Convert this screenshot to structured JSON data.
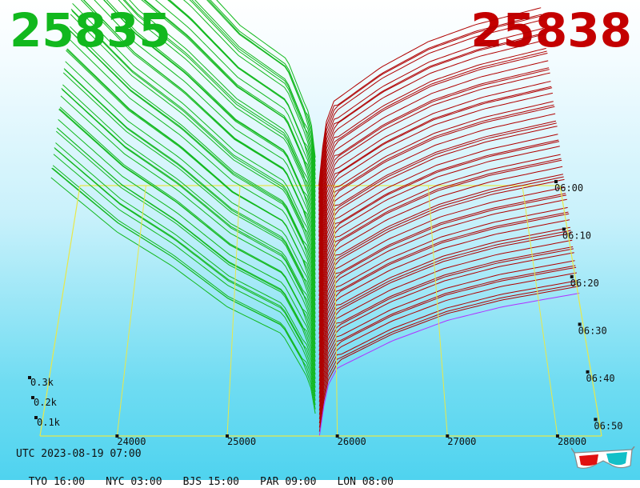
{
  "header": {
    "bid_price": "25835",
    "ask_price": "25838"
  },
  "colors": {
    "bid": "#12b81e",
    "ask": "#b00000",
    "grid": "#e8e84a",
    "latest": "#b030ff"
  },
  "footer": {
    "utc": "UTC 2023-08-19 07:00",
    "zones": [
      "TYO 16:00",
      "NYC 03:00",
      "BJS 15:00",
      "PAR 09:00",
      "LON 08:00"
    ]
  },
  "chart_data": {
    "type": "area",
    "title": "",
    "x_ticks": [
      24000,
      25000,
      26000,
      27000,
      28000
    ],
    "xlim": [
      23300,
      28400
    ],
    "y_ticks": [
      "0.1k",
      "0.2k",
      "0.3k"
    ],
    "time_ticks": [
      "06:00",
      "06:10",
      "06:20",
      "06:30",
      "06:40",
      "06:50"
    ],
    "mid_price": 25836,
    "bid_profile": {
      "x": [
        23400,
        24000,
        24500,
        25000,
        25500,
        25750,
        25835
      ],
      "cum_volume": [
        380,
        300,
        250,
        190,
        150,
        80,
        0
      ]
    },
    "ask_profile": {
      "x": [
        25838,
        25900,
        26000,
        26500,
        27000,
        27500,
        28200
      ],
      "cum_volume": [
        0,
        70,
        100,
        140,
        170,
        190,
        210
      ]
    },
    "snapshots": 60
  }
}
